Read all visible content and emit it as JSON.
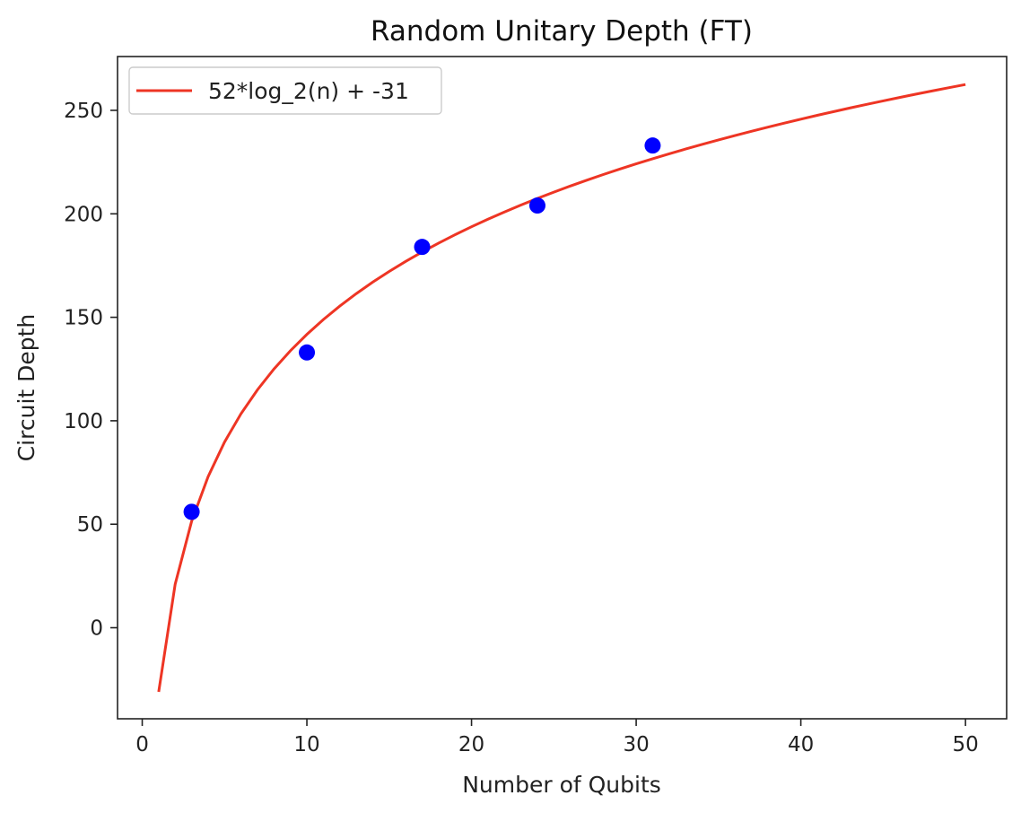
{
  "chart_data": {
    "type": "scatter",
    "title": "Random Unitary Depth (FT)",
    "xlabel": "Number of Qubits",
    "ylabel": "Circuit Depth",
    "xlim": [
      -1.5,
      52.5
    ],
    "ylim": [
      -44,
      276
    ],
    "x_ticks": [
      0,
      10,
      20,
      30,
      40,
      50
    ],
    "y_ticks": [
      0,
      50,
      100,
      150,
      200,
      250
    ],
    "grid": false,
    "series": [
      {
        "kind": "points",
        "color": "#0000ff",
        "x": [
          3,
          10,
          17,
          24,
          31
        ],
        "y": [
          56,
          133,
          184,
          204,
          233
        ]
      },
      {
        "kind": "fit-line",
        "name": "52*log_2(n) + -31",
        "color": "#ee3524",
        "coef": 52,
        "intercept": -31,
        "x_range": [
          1,
          50
        ]
      }
    ],
    "legend": {
      "position": "top-left"
    }
  }
}
